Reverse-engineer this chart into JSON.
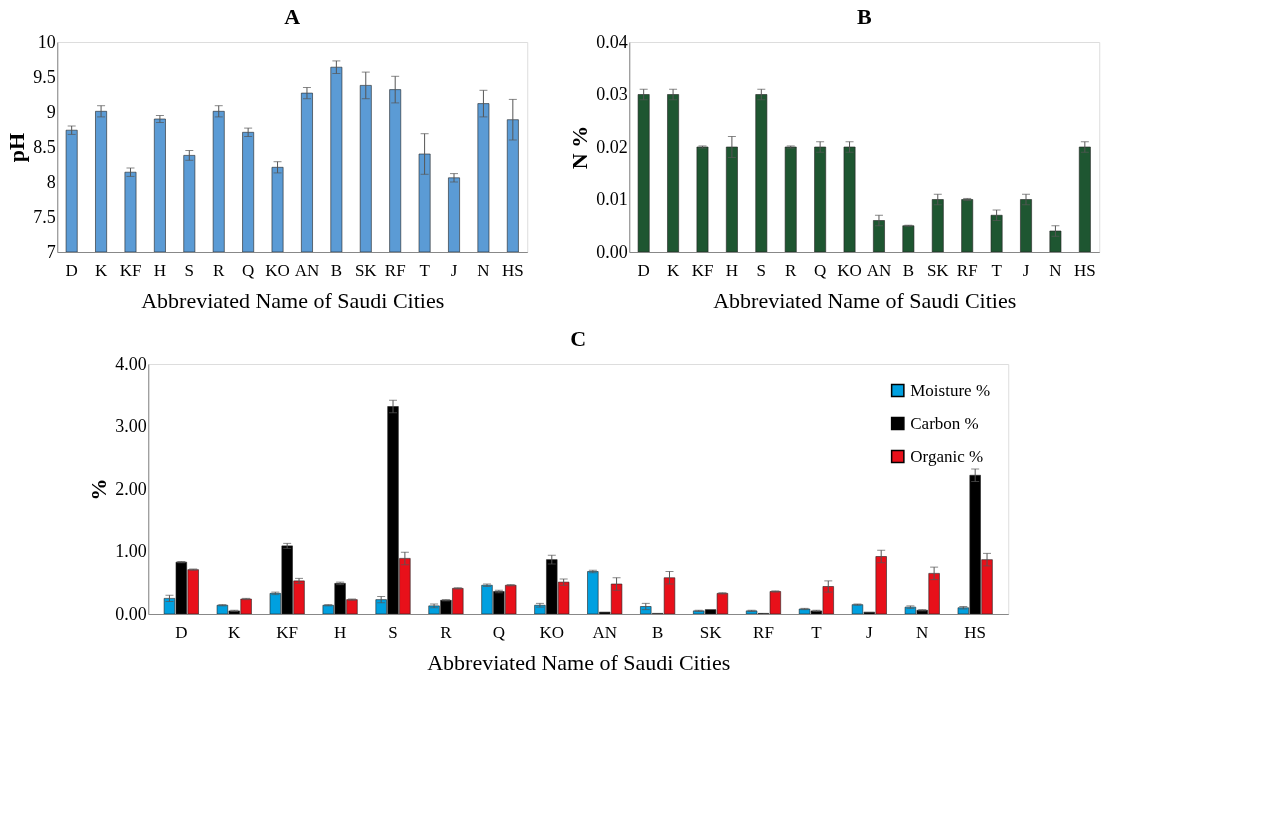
{
  "chart_data": [
    {
      "type": "bar",
      "title": "A",
      "xlabel": "Abbreviated Name of Saudi Cities",
      "ylabel": "pH",
      "categories": [
        "D",
        "K",
        "KF",
        "H",
        "S",
        "R",
        "Q",
        "KO",
        "AN",
        "B",
        "SK",
        "RF",
        "T",
        "J",
        "N",
        "HS"
      ],
      "series": [
        {
          "color": "#5b9bd5",
          "values": [
            8.74,
            9.01,
            8.14,
            8.9,
            8.38,
            9.01,
            8.71,
            8.21,
            9.27,
            9.64,
            9.38,
            9.32,
            8.4,
            8.06,
            9.12,
            8.89
          ],
          "errors": [
            0.06,
            0.08,
            0.06,
            0.05,
            0.07,
            0.08,
            0.06,
            0.08,
            0.08,
            0.09,
            0.19,
            0.19,
            0.29,
            0.06,
            0.19,
            0.29
          ]
        }
      ],
      "ylim": [
        7,
        10
      ],
      "yticks": [
        7,
        7.5,
        8,
        8.5,
        9,
        9.5,
        10
      ]
    },
    {
      "type": "bar",
      "title": "B",
      "xlabel": "Abbreviated Name of Saudi Cities",
      "ylabel": "N %",
      "categories": [
        "D",
        "K",
        "KF",
        "H",
        "S",
        "R",
        "Q",
        "KO",
        "AN",
        "B",
        "SK",
        "RF",
        "T",
        "J",
        "N",
        "HS"
      ],
      "series": [
        {
          "color": "#1e5631",
          "values": [
            0.03,
            0.03,
            0.02,
            0.02,
            0.03,
            0.02,
            0.02,
            0.02,
            0.006,
            0.005,
            0.01,
            0.01,
            0.007,
            0.01,
            0.004,
            0.02
          ],
          "errors": [
            0.001,
            0.001,
            0.0002,
            0.002,
            0.001,
            0.0002,
            0.001,
            0.001,
            0.001,
            0.0001,
            0.001,
            0.0002,
            0.001,
            0.001,
            0.001,
            0.001
          ]
        }
      ],
      "ylim": [
        0,
        0.04
      ],
      "yticks": [
        {
          "value": 0,
          "label": "0.00"
        },
        {
          "value": 0.01,
          "label": "0.01"
        },
        {
          "value": 0.02,
          "label": "0.02"
        },
        {
          "value": 0.03,
          "label": "0.03"
        },
        {
          "value": 0.04,
          "label": "0.04"
        }
      ]
    },
    {
      "type": "bar",
      "title": "C",
      "xlabel": "Abbreviated Name of Saudi Cities",
      "ylabel": "%",
      "legend": "top right",
      "categories": [
        "D",
        "K",
        "KF",
        "H",
        "S",
        "R",
        "Q",
        "KO",
        "AN",
        "B",
        "SK",
        "RF",
        "T",
        "J",
        "N",
        "HS"
      ],
      "series": [
        {
          "name": "Moisture %",
          "color": "#00a0e0",
          "values": [
            0.25,
            0.14,
            0.33,
            0.14,
            0.23,
            0.13,
            0.46,
            0.14,
            0.68,
            0.12,
            0.05,
            0.05,
            0.08,
            0.15,
            0.11,
            0.1
          ],
          "errors": [
            0.05,
            0.01,
            0.02,
            0.01,
            0.05,
            0.03,
            0.02,
            0.03,
            0.02,
            0.05,
            0.01,
            0.01,
            0.01,
            0.01,
            0.02,
            0.02
          ]
        },
        {
          "name": "Carbon %",
          "color": "#000000",
          "values": [
            0.83,
            0.05,
            1.09,
            0.49,
            3.32,
            0.22,
            0.36,
            0.87,
            0.03,
            0.01,
            0.07,
            0.01,
            0.05,
            0.03,
            0.06,
            2.22
          ],
          "errors": [
            0.01,
            0.01,
            0.04,
            0.02,
            0.1,
            0.01,
            0.02,
            0.07,
            null,
            null,
            null,
            null,
            0.01,
            null,
            0.01,
            0.1
          ]
        },
        {
          "name": "Organic %",
          "color": "#e8101a",
          "values": [
            0.71,
            0.24,
            0.53,
            0.23,
            0.89,
            0.41,
            0.46,
            0.51,
            0.48,
            0.58,
            0.33,
            0.36,
            0.44,
            0.92,
            0.65,
            0.87
          ],
          "errors": [
            0.01,
            0.01,
            0.04,
            0.01,
            0.1,
            0.01,
            0.01,
            0.05,
            0.1,
            0.1,
            0.01,
            0.01,
            0.09,
            0.1,
            0.1,
            0.1
          ]
        }
      ],
      "ylim": [
        0,
        4
      ],
      "yticks": [
        {
          "value": 0,
          "label": "0.00"
        },
        {
          "value": 1,
          "label": "1.00"
        },
        {
          "value": 2,
          "label": "2.00"
        },
        {
          "value": 3,
          "label": "3.00"
        },
        {
          "value": 4,
          "label": "4.00"
        }
      ]
    }
  ]
}
